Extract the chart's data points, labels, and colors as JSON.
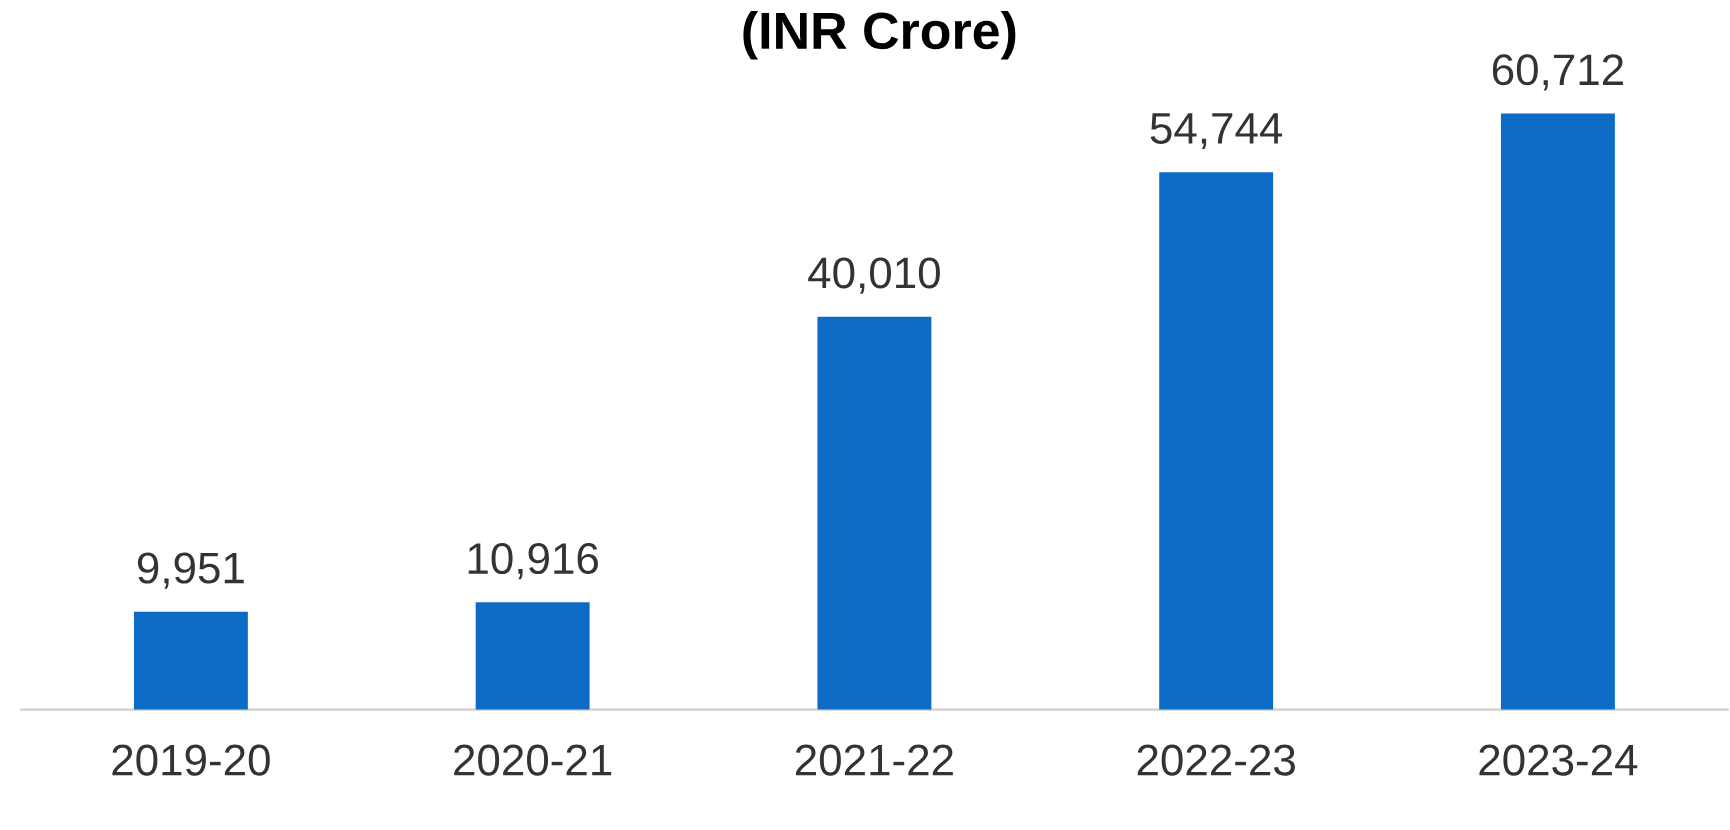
{
  "chart_data": {
    "type": "bar",
    "title": "(INR Crore)",
    "categories": [
      "2019-20",
      "2020-21",
      "2021-22",
      "2022-23",
      "2023-24"
    ],
    "values": [
      9951,
      10916,
      40010,
      54744,
      60712
    ],
    "value_labels": [
      "9,951",
      "10,916",
      "40,010",
      "54,744",
      "60,712"
    ],
    "color": "#0b6bc5"
  }
}
